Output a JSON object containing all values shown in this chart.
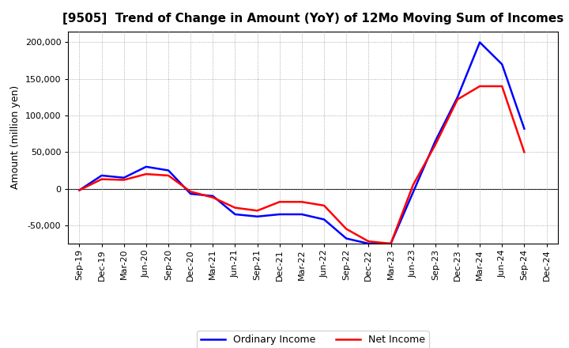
{
  "title": "[9505]  Trend of Change in Amount (YoY) of 12Mo Moving Sum of Incomes",
  "ylabel": "Amount (million yen)",
  "labels": [
    "Sep-19",
    "Dec-19",
    "Mar-20",
    "Jun-20",
    "Sep-20",
    "Dec-20",
    "Mar-21",
    "Jun-21",
    "Sep-21",
    "Dec-21",
    "Mar-22",
    "Jun-22",
    "Sep-22",
    "Dec-22",
    "Mar-23",
    "Jun-23",
    "Sep-23",
    "Dec-23",
    "Mar-24",
    "Jun-24",
    "Sep-24",
    "Dec-24"
  ],
  "ordinary_income": [
    -2000,
    18000,
    15000,
    30000,
    25000,
    -7000,
    -10000,
    -35000,
    -38000,
    -35000,
    -35000,
    -42000,
    -68000,
    -75000,
    -75000,
    -5000,
    65000,
    125000,
    200000,
    170000,
    82000,
    null
  ],
  "net_income": [
    -2000,
    13000,
    12000,
    20000,
    18000,
    -4000,
    -12000,
    -26000,
    -30000,
    -18000,
    -18000,
    -23000,
    -55000,
    -72000,
    -75000,
    5000,
    60000,
    122000,
    140000,
    140000,
    50000,
    null
  ],
  "ordinary_color": "#0000ff",
  "net_color": "#ff0000",
  "ylim": [
    -75000,
    215000
  ],
  "yticks": [
    -50000,
    0,
    50000,
    100000,
    150000,
    200000
  ],
  "bg_color": "#ffffff",
  "grid_color": "#999999",
  "line_width": 1.8,
  "title_fontsize": 11,
  "tick_fontsize": 8,
  "ylabel_fontsize": 9,
  "legend_fontsize": 9
}
